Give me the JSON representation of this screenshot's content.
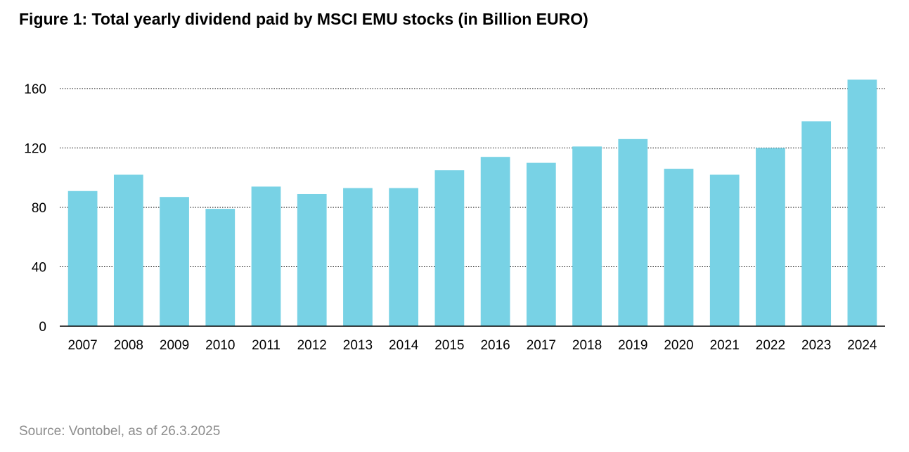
{
  "title": "Figure 1: Total yearly dividend paid by MSCI EMU stocks (in Billion EURO)",
  "source": "Source: Vontobel, as of 26.3.2025",
  "chart_data": {
    "type": "bar",
    "title": "Figure 1: Total yearly dividend paid by MSCI EMU stocks (in Billion EURO)",
    "xlabel": "",
    "ylabel": "",
    "categories": [
      "2007",
      "2008",
      "2009",
      "2010",
      "2011",
      "2012",
      "2013",
      "2014",
      "2015",
      "2016",
      "2017",
      "2018",
      "2019",
      "2020",
      "2021",
      "2022",
      "2023",
      "2024"
    ],
    "values": [
      91,
      102,
      87,
      79,
      94,
      89,
      93,
      93,
      105,
      114,
      110,
      121,
      126,
      106,
      102,
      120,
      138,
      166
    ],
    "ylim": [
      0,
      160
    ],
    "yticks": [
      0,
      40,
      80,
      120,
      160
    ],
    "grid": "horizontal dotted",
    "bar_color": "#78d2e5"
  }
}
